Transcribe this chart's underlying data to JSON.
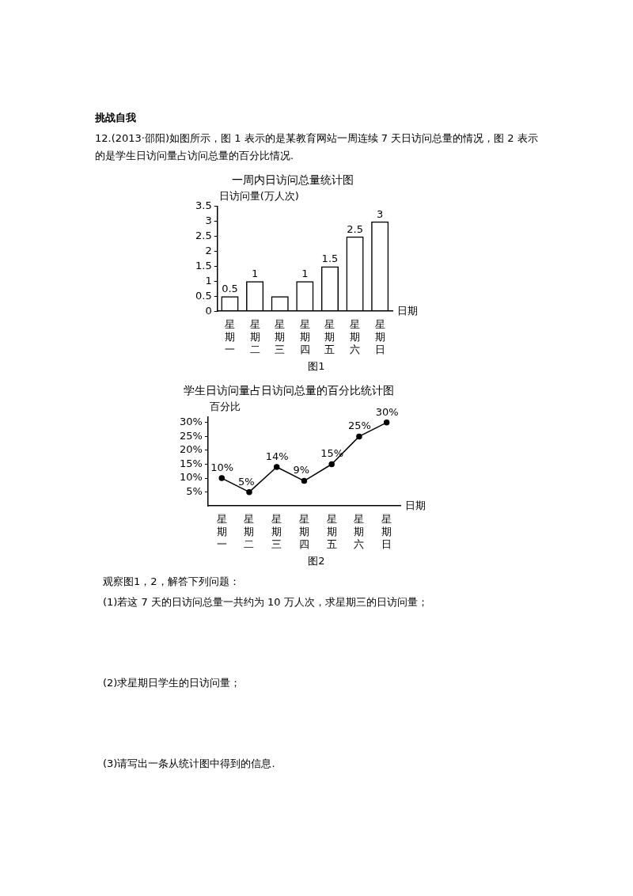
{
  "chart_data": [
    {
      "type": "bar",
      "title": "一周内日访问总量统计图",
      "ylabel": "日访问量(万人次)",
      "xlabel": "日期",
      "categories": [
        "星期一",
        "星期二",
        "星期三",
        "星期四",
        "星期五",
        "星期六",
        "星期日"
      ],
      "values": [
        0.5,
        1,
        0.5,
        1,
        1.5,
        2.5,
        3
      ],
      "color": "#000000",
      "value_labels": [
        "0.5",
        "1",
        null,
        "1",
        "1.5",
        "2.5",
        "3"
      ],
      "ylim": [
        0,
        3.5
      ],
      "yticks": [
        0,
        0.5,
        1,
        1.5,
        2,
        2.5,
        3,
        3.5
      ],
      "grid": false,
      "legend": false,
      "annotations": [
        "挑战自我",
        "12.(2013·邵阳)如图所示，图 1 表示的是某教育网站一周连续 7 天日访问总量的情况，图 2 表示的是学生日访问量占访问总量的百分比情况.",
        "图1"
      ]
    },
    {
      "type": "line",
      "title": "学生日访问量占日访问总量的百分比统计图",
      "ylabel": "百分比",
      "xlabel": "日期",
      "categories": [
        "星期一",
        "星期二",
        "星期三",
        "星期四",
        "星期五",
        "星期六",
        "星期日"
      ],
      "values": [
        10,
        5,
        14,
        9,
        15,
        25,
        30
      ],
      "color": "#000000",
      "marker": "circle",
      "line_style": "solid",
      "value_labels": [
        "10%",
        "5%",
        "14%",
        "9%",
        "15%",
        "25%",
        "30%"
      ],
      "ylim": [
        0,
        32
      ],
      "yticks": [
        {
          "value": 5,
          "label": "5%"
        },
        {
          "value": 10,
          "label": "10%"
        },
        {
          "value": 15,
          "label": "15%"
        },
        {
          "value": 20,
          "label": "20%"
        },
        {
          "value": 25,
          "label": "25%"
        },
        {
          "value": 30,
          "label": "30%"
        }
      ],
      "grid": false,
      "legend": false,
      "annotations": [
        "图2",
        "观察图1，2，解答下列问题：",
        "(1)若这 7 天的日访问总量一共约为 10 万人次，求星期三的日访问量；",
        "(2)求星期日学生的日访问量；",
        "(3)请写出一条从统计图中得到的信息."
      ]
    }
  ]
}
